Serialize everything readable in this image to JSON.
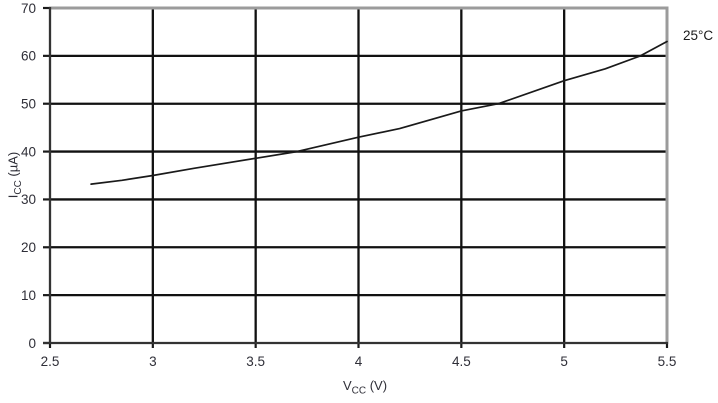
{
  "chart_data": {
    "type": "line",
    "title": "",
    "xlabel": {
      "base": "V",
      "sub": "CC",
      "unit": " (V)"
    },
    "ylabel": {
      "base": "I",
      "sub": "CC",
      "unit": " (µA)"
    },
    "xlim": [
      2.5,
      5.5
    ],
    "ylim": [
      0,
      70
    ],
    "grid": true,
    "legend_position": "none",
    "x_ticks": [
      2.5,
      3,
      3.5,
      4,
      4.5,
      5,
      5.5
    ],
    "x_tick_labels": [
      "2.5",
      "3",
      "3.5",
      "4",
      "4.5",
      "5",
      "5.5"
    ],
    "y_ticks": [
      0,
      10,
      20,
      30,
      40,
      50,
      60,
      70
    ],
    "y_tick_labels": [
      "0",
      "10",
      "20",
      "30",
      "40",
      "50",
      "60",
      "70"
    ],
    "series": [
      {
        "name": "25°C",
        "x": [
          2.7,
          2.85,
          3.0,
          3.2,
          3.5,
          3.7,
          4.0,
          4.2,
          4.5,
          4.68,
          5.0,
          5.2,
          5.37,
          5.5
        ],
        "y": [
          33.2,
          34.0,
          35.0,
          36.5,
          38.6,
          40.0,
          43.0,
          44.8,
          48.5,
          50.0,
          54.8,
          57.3,
          60.0,
          63.0
        ]
      }
    ],
    "annotation": {
      "text": "25°C"
    }
  },
  "colors": {
    "curve": "#1a1a1a",
    "gridline": "#111111",
    "border_light": "#9b9b9b",
    "axis_dark": "#333333",
    "tick": "#1a1a1a",
    "text": "#2f2f38",
    "background": "#ffffff"
  }
}
